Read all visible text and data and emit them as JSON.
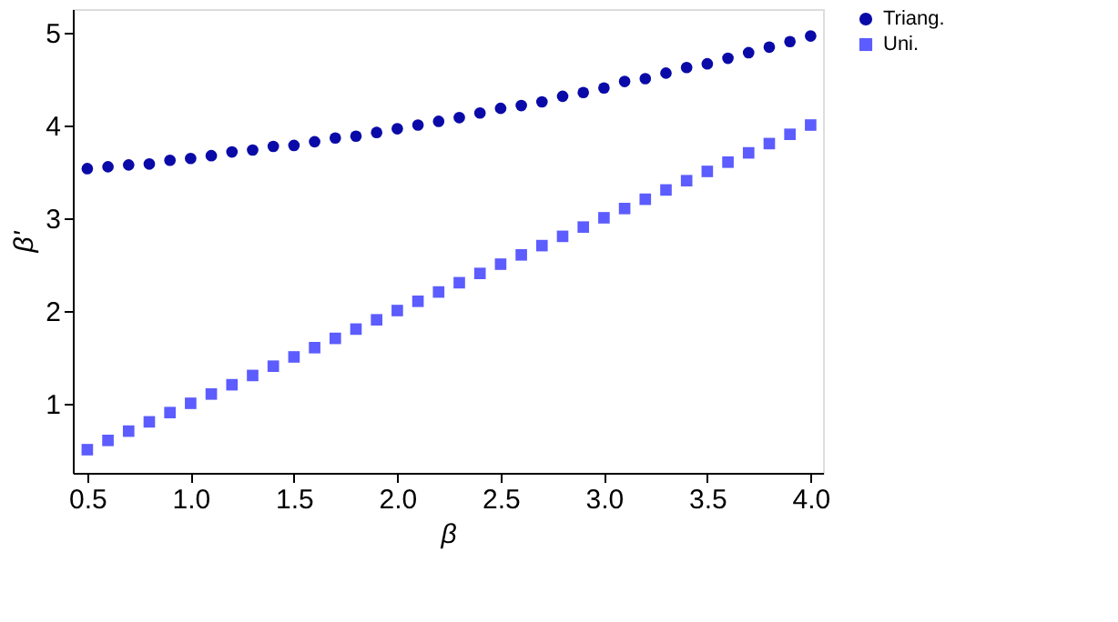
{
  "chart_data": {
    "type": "scatter",
    "xlabel": "β",
    "ylabel": "β'",
    "x": [
      0.5,
      0.6,
      0.7,
      0.8,
      0.9,
      1.0,
      1.1,
      1.2,
      1.3,
      1.4,
      1.5,
      1.6,
      1.7,
      1.8,
      1.9,
      2.0,
      2.1,
      2.2,
      2.3,
      2.4,
      2.5,
      2.6,
      2.7,
      2.8,
      2.9,
      3.0,
      3.1,
      3.2,
      3.3,
      3.4,
      3.5,
      3.6,
      3.7,
      3.8,
      3.9,
      4.0
    ],
    "series": [
      {
        "name": "Triang.",
        "color": "#0a0aa8",
        "marker": "circle",
        "values": [
          3.53,
          3.55,
          3.57,
          3.58,
          3.62,
          3.64,
          3.67,
          3.71,
          3.73,
          3.77,
          3.78,
          3.82,
          3.86,
          3.88,
          3.92,
          3.96,
          4.0,
          4.04,
          4.08,
          4.13,
          4.18,
          4.21,
          4.25,
          4.31,
          4.35,
          4.4,
          4.47,
          4.5,
          4.56,
          4.62,
          4.66,
          4.72,
          4.78,
          4.84,
          4.9,
          4.96
        ]
      },
      {
        "name": "Uni.",
        "color": "#5c5cff",
        "marker": "square",
        "values": [
          0.5,
          0.6,
          0.7,
          0.8,
          0.9,
          1.0,
          1.1,
          1.2,
          1.3,
          1.4,
          1.5,
          1.6,
          1.7,
          1.8,
          1.9,
          2.0,
          2.1,
          2.2,
          2.3,
          2.4,
          2.5,
          2.6,
          2.7,
          2.8,
          2.9,
          3.0,
          3.1,
          3.2,
          3.3,
          3.4,
          3.5,
          3.6,
          3.7,
          3.8,
          3.9,
          4.0
        ]
      }
    ],
    "xlim": [
      0.43,
      4.06
    ],
    "xticks": [
      {
        "value": 0.5,
        "label": "0.5"
      },
      {
        "value": 1.0,
        "label": "1.0"
      },
      {
        "value": 1.5,
        "label": "1.5"
      },
      {
        "value": 2.0,
        "label": "2.0"
      },
      {
        "value": 2.5,
        "label": "2.5"
      },
      {
        "value": 3.0,
        "label": "3.0"
      },
      {
        "value": 3.5,
        "label": "3.5"
      },
      {
        "value": 4.0,
        "label": "4.0"
      }
    ],
    "ylim": [
      0.25,
      5.25
    ],
    "yticks": [
      1,
      2,
      3,
      4,
      5
    ],
    "grid": false,
    "legend": "right"
  }
}
